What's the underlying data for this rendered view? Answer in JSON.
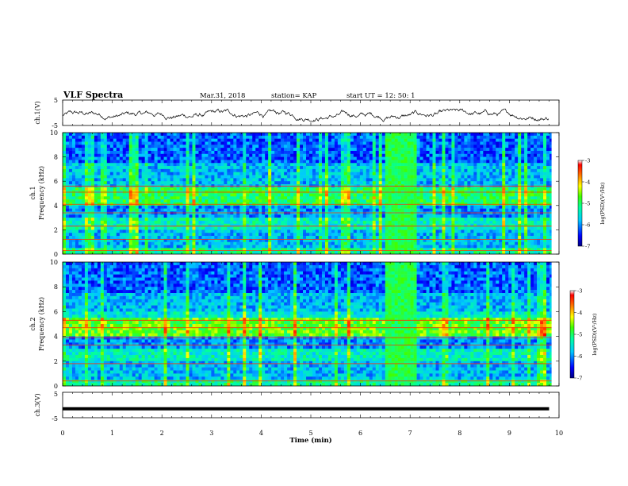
{
  "header": {
    "title": "VLF Spectra",
    "date": "Mar.31, 2018",
    "station": "station= KAP",
    "start": "start UT =  12: 50: 1"
  },
  "chart_data": [
    {
      "type": "line",
      "panel": "ch1-waveform",
      "ylabel": "ch.1(V)",
      "ylim": [
        -5,
        5
      ],
      "yticks": [
        "5",
        "-5"
      ],
      "x_range_min": [
        0,
        9.8
      ],
      "value_band": [
        -3.5,
        1.5
      ]
    },
    {
      "type": "heatmap",
      "panel": "ch1-spectrogram",
      "ylabel_top": "ch.1",
      "ylabel": "Frequency (kHz)",
      "ylim": [
        0,
        10
      ],
      "yticks": [
        "0",
        "2",
        "4",
        "6",
        "8",
        "10"
      ],
      "burst_interval_min": [
        6.5,
        7.1
      ],
      "colorbar": {
        "label": "log(PSD)(V²/Hz)",
        "range": [
          -7,
          -3
        ],
        "ticks": [
          "-3",
          "-4",
          "-5",
          "-6",
          "-7"
        ]
      }
    },
    {
      "type": "heatmap",
      "panel": "ch2-spectrogram",
      "ylabel_top": "ch.2",
      "ylabel": "Frequency (kHz)",
      "ylim": [
        0,
        10
      ],
      "yticks": [
        "0",
        "2",
        "4",
        "6",
        "8",
        "10"
      ],
      "burst_interval_min": [
        6.5,
        7.1
      ],
      "colorbar": {
        "label": "log(PSD)(V²/Hz)",
        "range": [
          -7,
          -3
        ],
        "ticks": [
          "-3",
          "-4",
          "-5",
          "-6",
          "-7"
        ]
      }
    },
    {
      "type": "line",
      "panel": "ch3-waveform",
      "ylabel": "ch.3(V)",
      "ylim": [
        -5,
        5
      ],
      "yticks": [
        "5",
        "-5"
      ],
      "constant_value": -1.5,
      "x_range_min": [
        0,
        9.8
      ]
    }
  ],
  "xaxis": {
    "label": "Time (min)",
    "range": [
      0,
      10
    ],
    "ticks": [
      "0",
      "1",
      "2",
      "3",
      "4",
      "5",
      "6",
      "7",
      "8",
      "9",
      "10"
    ]
  }
}
